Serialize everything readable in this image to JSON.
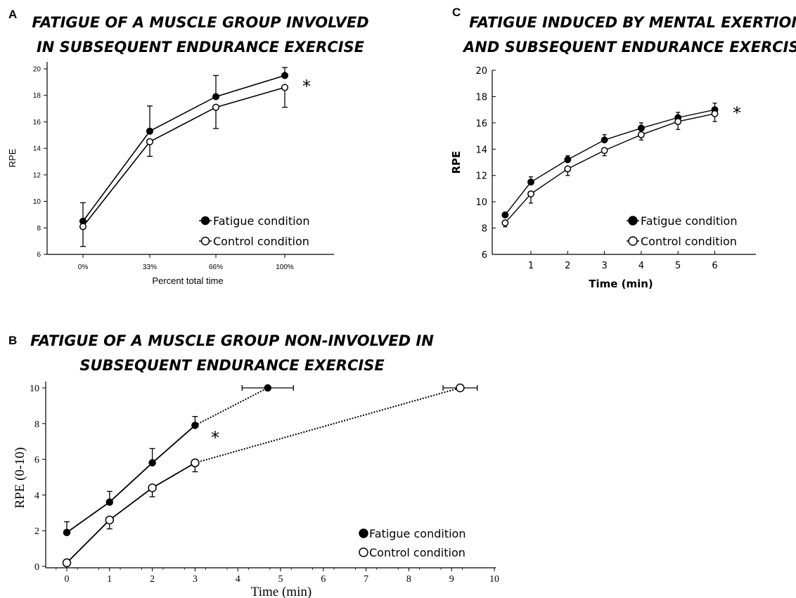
{
  "chart_data": [
    {
      "panel": "A",
      "type": "line",
      "title_lines": [
        "Fatigue of a muscle group involved",
        "in subsequent endurance exercise"
      ],
      "xlabel": "Percent total time",
      "ylabel": "RPE",
      "categories": [
        "0%",
        "33%",
        "66%",
        "100%"
      ],
      "ylim": [
        6,
        20
      ],
      "yticks": [
        6,
        8,
        10,
        12,
        14,
        16,
        18,
        20
      ],
      "grid": false,
      "legend_position": "bottom-right",
      "annotation": "*",
      "series": [
        {
          "name": "Fatigue condition",
          "marker": "filled",
          "values": [
            8.5,
            15.3,
            17.9,
            19.5
          ],
          "err_up": [
            1.4,
            1.9,
            1.6,
            0.6
          ]
        },
        {
          "name": "Control condition",
          "marker": "open",
          "values": [
            8.1,
            14.5,
            17.1,
            18.6
          ],
          "err_down": [
            1.5,
            1.1,
            1.6,
            1.5
          ]
        }
      ]
    },
    {
      "panel": "B",
      "type": "line",
      "title_lines": [
        "Fatigue of a muscle group non-involved in",
        "subsequent endurance exercise"
      ],
      "xlabel": "Time (min)",
      "ylabel": "RPE (0-10)",
      "xlim": [
        -0.5,
        10
      ],
      "xticks": [
        0,
        1,
        2,
        3,
        4,
        5,
        6,
        7,
        8,
        9,
        10
      ],
      "ylim": [
        0,
        10
      ],
      "yticks": [
        0,
        2,
        4,
        6,
        8,
        10
      ],
      "grid": false,
      "legend_position": "bottom-right",
      "annotation": "*",
      "series": [
        {
          "name": "Fatigue condition",
          "marker": "filled",
          "x": [
            0,
            1,
            2,
            3
          ],
          "y": [
            1.9,
            3.6,
            5.8,
            7.9
          ],
          "err_up": [
            0.6,
            0.6,
            0.8,
            0.5
          ],
          "end": {
            "x": 4.7,
            "y": 10,
            "xerr": 0.6
          }
        },
        {
          "name": "Control condition",
          "marker": "open",
          "x": [
            0,
            1,
            2,
            3
          ],
          "y": [
            0.2,
            2.6,
            4.4,
            5.8
          ],
          "err_down": [
            0,
            0.5,
            0.5,
            0.5
          ],
          "end": {
            "x": 9.2,
            "y": 10,
            "xerr": 0.4
          }
        }
      ]
    },
    {
      "panel": "C",
      "type": "line",
      "title_lines": [
        "Fatigue induced by mental exertion",
        "and subsequent endurance exercise"
      ],
      "xlabel": "Time (min)",
      "ylabel": "RPE",
      "xlim": [
        0,
        7
      ],
      "xticks": [
        1,
        2,
        3,
        4,
        5,
        6
      ],
      "ylim": [
        6,
        20
      ],
      "yticks": [
        6,
        8,
        10,
        12,
        14,
        16,
        18,
        20
      ],
      "grid": false,
      "legend_position": "bottom-right",
      "annotation": "*",
      "series": [
        {
          "name": "Fatigue condition",
          "marker": "filled",
          "x": [
            0.3,
            1,
            2,
            3,
            4,
            5,
            6
          ],
          "y": [
            9.0,
            11.5,
            13.2,
            14.7,
            15.6,
            16.4,
            17.0
          ],
          "err_up": [
            0.2,
            0.4,
            0.3,
            0.4,
            0.4,
            0.4,
            0.5
          ]
        },
        {
          "name": "Control condition",
          "marker": "open",
          "x": [
            0.3,
            1,
            2,
            3,
            4,
            5,
            6
          ],
          "y": [
            8.4,
            10.6,
            12.5,
            13.9,
            15.1,
            16.1,
            16.7
          ],
          "err_down": [
            0.3,
            0.7,
            0.5,
            0.4,
            0.4,
            0.6,
            0.6
          ]
        }
      ]
    }
  ]
}
